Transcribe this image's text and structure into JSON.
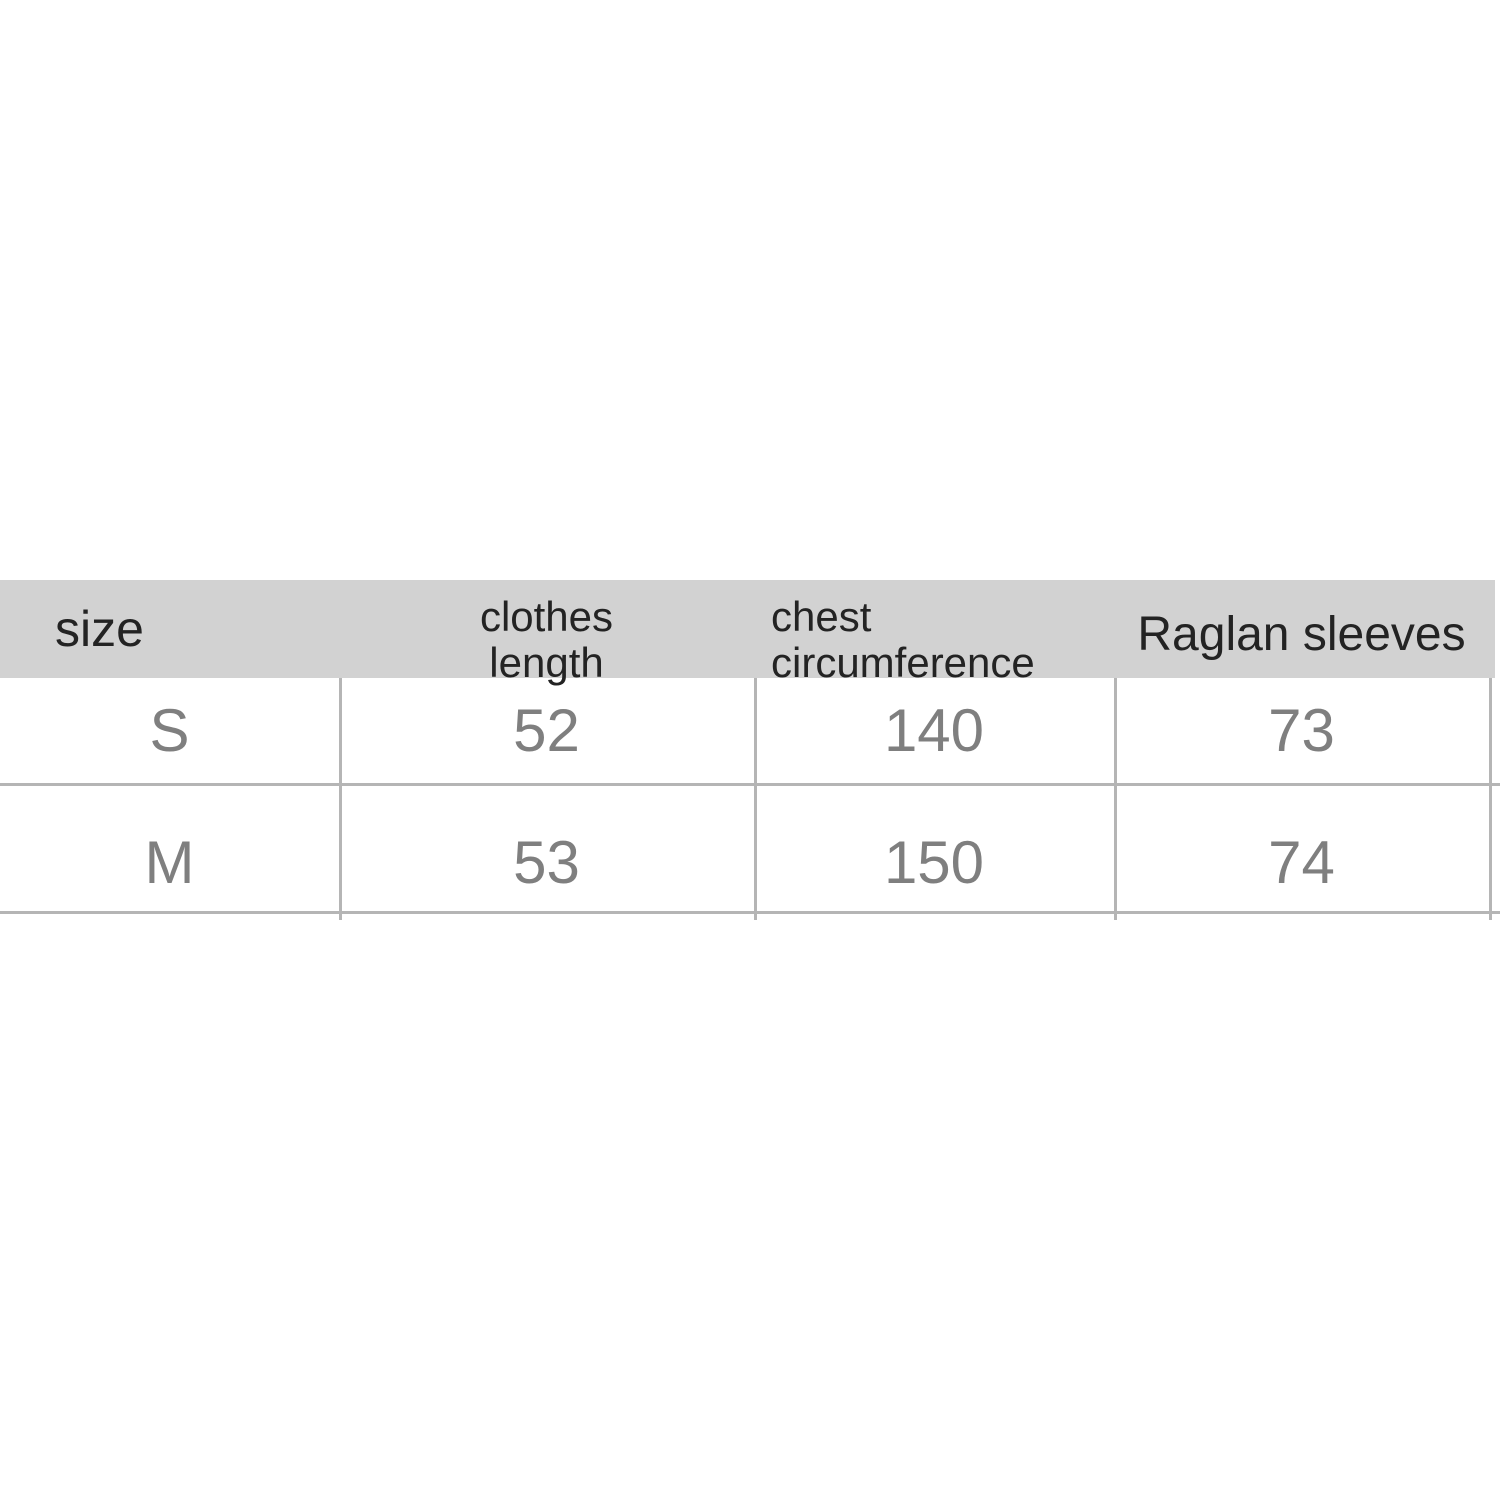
{
  "table": {
    "header": {
      "size": "size",
      "clothes_length": "clothes length",
      "chest_circumference": "chest circumference",
      "raglan_sleeves": "Raglan sleeves"
    },
    "rows": [
      {
        "size": "S",
        "clothes_length": "52",
        "chest_circumference": "140",
        "raglan_sleeves": "73"
      },
      {
        "size": "M",
        "clothes_length": "53",
        "chest_circumference": "150",
        "raglan_sleeves": "74"
      }
    ]
  },
  "chart_data": {
    "type": "table",
    "columns": [
      "size",
      "clothes length",
      "chest circumference",
      "Raglan sleeves"
    ],
    "rows": [
      [
        "S",
        52,
        140,
        73
      ],
      [
        "M",
        53,
        150,
        74
      ]
    ],
    "title": "",
    "layout": {
      "header_background": "#d2d2d2",
      "grid": true,
      "third_row_cut_off_at_bottom": true
    }
  },
  "colors": {
    "background": "#ffffff",
    "header_background": "#d2d2d2",
    "header_text": "#232323",
    "data_text": "#7f7f7f",
    "grid_line": "#b5b5b5"
  }
}
